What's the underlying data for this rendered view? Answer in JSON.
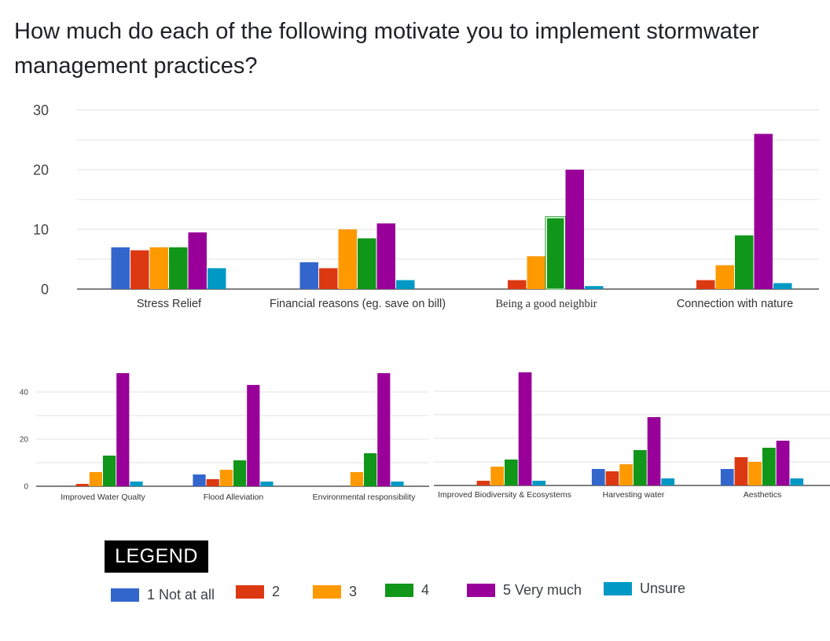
{
  "title": "How much do each of the following motivate you to implement stormwater management practices?",
  "colors": [
    "#3366cc",
    "#dc3912",
    "#ff9900",
    "#109618",
    "#990099",
    "#0099c6"
  ],
  "chart_data": [
    {
      "type": "bar",
      "categories": [
        "Stress Relief",
        "Financial reasons (eg. save on bill)",
        "Being a good neighbir",
        "Connection with nature"
      ],
      "series": [
        {
          "name": "1 Not at all",
          "values": [
            7,
            4.5,
            0,
            0
          ]
        },
        {
          "name": "2",
          "values": [
            6.5,
            3.5,
            1.5,
            1.5
          ]
        },
        {
          "name": "3",
          "values": [
            7,
            10,
            5.5,
            4
          ]
        },
        {
          "name": "4",
          "values": [
            7,
            8.5,
            12,
            9
          ]
        },
        {
          "name": "5 Very much",
          "values": [
            9.5,
            11,
            20,
            26
          ]
        },
        {
          "name": "Unsure",
          "values": [
            3.5,
            1.5,
            0.5,
            1
          ]
        }
      ],
      "yticks": [
        0,
        10,
        20,
        30
      ],
      "ylim": [
        0,
        30
      ],
      "grid": true
    },
    {
      "type": "bar",
      "categories": [
        "Improved Water Qualty",
        "Flood Alleviation",
        "Environmental responsibility"
      ],
      "series": [
        {
          "name": "1 Not at all",
          "values": [
            0,
            5,
            0
          ]
        },
        {
          "name": "2",
          "values": [
            1,
            3,
            0
          ]
        },
        {
          "name": "3",
          "values": [
            6,
            7,
            6
          ]
        },
        {
          "name": "4",
          "values": [
            13,
            11,
            14
          ]
        },
        {
          "name": "5 Very much",
          "values": [
            48,
            43,
            48
          ]
        },
        {
          "name": "Unsure",
          "values": [
            2,
            2,
            2
          ]
        }
      ],
      "yticks": [
        0,
        20,
        40
      ],
      "ylim": [
        0,
        50
      ],
      "grid": true
    },
    {
      "type": "bar",
      "categories": [
        "Improved Biodiversity & Ecosystems",
        "Harvesting water",
        "Aesthetics"
      ],
      "series": [
        {
          "name": "1 Not at all",
          "values": [
            0,
            7,
            7
          ]
        },
        {
          "name": "2",
          "values": [
            2,
            6,
            12
          ]
        },
        {
          "name": "3",
          "values": [
            8,
            9,
            10
          ]
        },
        {
          "name": "4",
          "values": [
            11,
            15,
            16
          ]
        },
        {
          "name": "5 Very much",
          "values": [
            48,
            29,
            19
          ]
        },
        {
          "name": "Unsure",
          "values": [
            2,
            3,
            3
          ]
        }
      ],
      "yticks": [],
      "ylim": [
        0,
        50
      ],
      "grid": true
    }
  ],
  "legend": {
    "title": "LEGEND",
    "items": [
      {
        "label": "1 Not at all",
        "color": "#3366cc"
      },
      {
        "label": "2",
        "color": "#dc3912"
      },
      {
        "label": "3",
        "color": "#ff9900"
      },
      {
        "label": "4",
        "color": "#109618"
      },
      {
        "label": "5 Very much",
        "color": "#990099"
      },
      {
        "label": "Unsure",
        "color": "#0099c6"
      }
    ]
  }
}
